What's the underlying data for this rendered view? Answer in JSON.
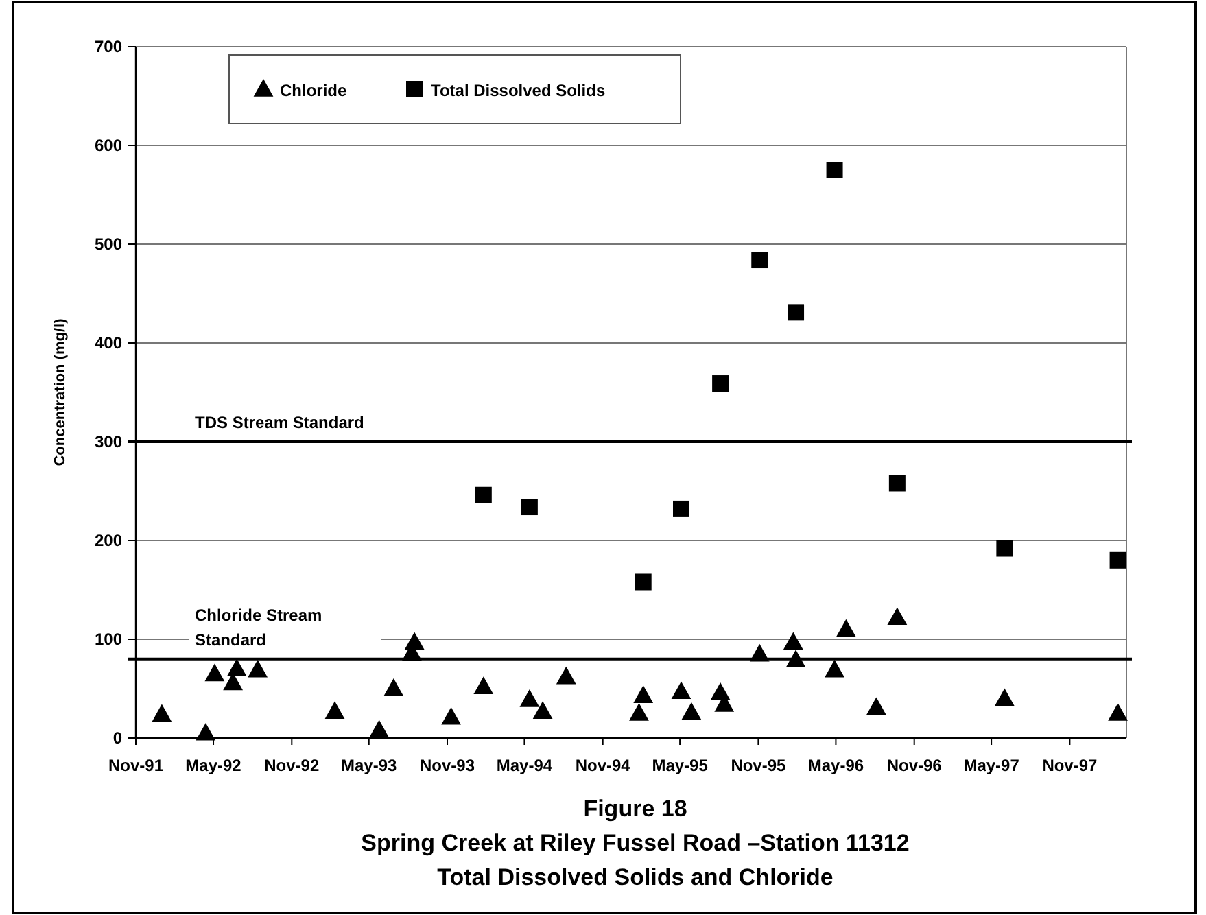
{
  "chart_data": {
    "type": "scatter",
    "title": "Figure 18",
    "subtitle": "Spring Creek at Riley Fussel Road –Station 11312\nTotal Dissolved Solids and Chloride",
    "ylabel": "Concentration (mg/l)",
    "xlim": [
      "1991-11-01",
      "1998-03-14"
    ],
    "xticks": [
      {
        "value": "1991-11-01",
        "label": "Nov-91"
      },
      {
        "value": "1992-05-01",
        "label": "May-92"
      },
      {
        "value": "1992-11-01",
        "label": "Nov-92"
      },
      {
        "value": "1993-05-01",
        "label": "May-93"
      },
      {
        "value": "1993-11-01",
        "label": "Nov-93"
      },
      {
        "value": "1994-05-01",
        "label": "May-94"
      },
      {
        "value": "1994-11-01",
        "label": "Nov-94"
      },
      {
        "value": "1995-05-01",
        "label": "May-95"
      },
      {
        "value": "1995-11-01",
        "label": "Nov-95"
      },
      {
        "value": "1996-05-01",
        "label": "May-96"
      },
      {
        "value": "1996-11-01",
        "label": "Nov-96"
      },
      {
        "value": "1997-05-01",
        "label": "May-97"
      },
      {
        "value": "1997-11-01",
        "label": "Nov-97"
      }
    ],
    "ylim": [
      0,
      700
    ],
    "yticks": [
      0,
      100,
      200,
      300,
      400,
      500,
      600,
      700
    ],
    "grid": "y",
    "legend": "top",
    "ref_lines": [
      {
        "axis": "y",
        "value": 300,
        "label": "TDS Stream Standard"
      },
      {
        "axis": "y",
        "value": 80,
        "label": "Chloride Stream\nStandard"
      }
    ],
    "series": [
      {
        "name": "Chloride",
        "color": "#000000",
        "marker": "triangle",
        "x": [
          "1992-01-01",
          "1992-04-13",
          "1992-05-04",
          "1992-06-16",
          "1992-06-25",
          "1992-08-13",
          "1993-02-10",
          "1993-05-25",
          "1993-06-28",
          "1993-08-10",
          "1993-08-16",
          "1993-11-10",
          "1994-01-25",
          "1994-05-13",
          "1994-06-13",
          "1994-08-07",
          "1995-01-25",
          "1995-02-04",
          "1995-05-04",
          "1995-05-28",
          "1995-08-04",
          "1995-08-13",
          "1995-11-04",
          "1996-01-22",
          "1996-01-28",
          "1996-04-28",
          "1996-05-25",
          "1996-08-04",
          "1996-09-22",
          "1997-06-01",
          "1998-02-22"
        ],
        "values": [
          24,
          5,
          65,
          56,
          70,
          69,
          27,
          8,
          50,
          86,
          97,
          21,
          52,
          39,
          27,
          62,
          25,
          43,
          47,
          26,
          46,
          34,
          85,
          97,
          79,
          69,
          110,
          31,
          122,
          40,
          25
        ]
      },
      {
        "name": "Total Dissolved Solids",
        "color": "#000000",
        "marker": "square",
        "x": [
          "1994-01-25",
          "1994-05-13",
          "1995-02-04",
          "1995-05-04",
          "1995-08-04",
          "1995-11-04",
          "1996-01-28",
          "1996-04-28",
          "1996-09-22",
          "1997-06-01",
          "1998-02-22"
        ],
        "values": [
          246,
          234,
          158,
          232,
          359,
          484,
          431,
          575,
          258,
          192,
          180
        ]
      }
    ]
  }
}
